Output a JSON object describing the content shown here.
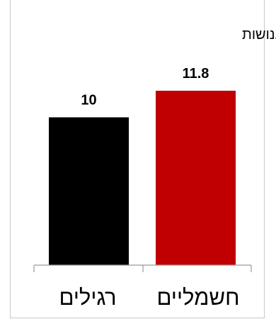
{
  "chart_data": {
    "type": "bar",
    "title": "פציעות קשות ואנושות",
    "categories": [
      "חשמליים",
      "רגילים"
    ],
    "values": [
      11.8,
      10
    ],
    "value_labels": [
      "11.8",
      "10"
    ],
    "colors": [
      "#c00000",
      "#000000"
    ],
    "ylim": [
      0,
      14
    ],
    "grid": false,
    "legend": "none",
    "xlabel": "",
    "ylabel": ""
  }
}
